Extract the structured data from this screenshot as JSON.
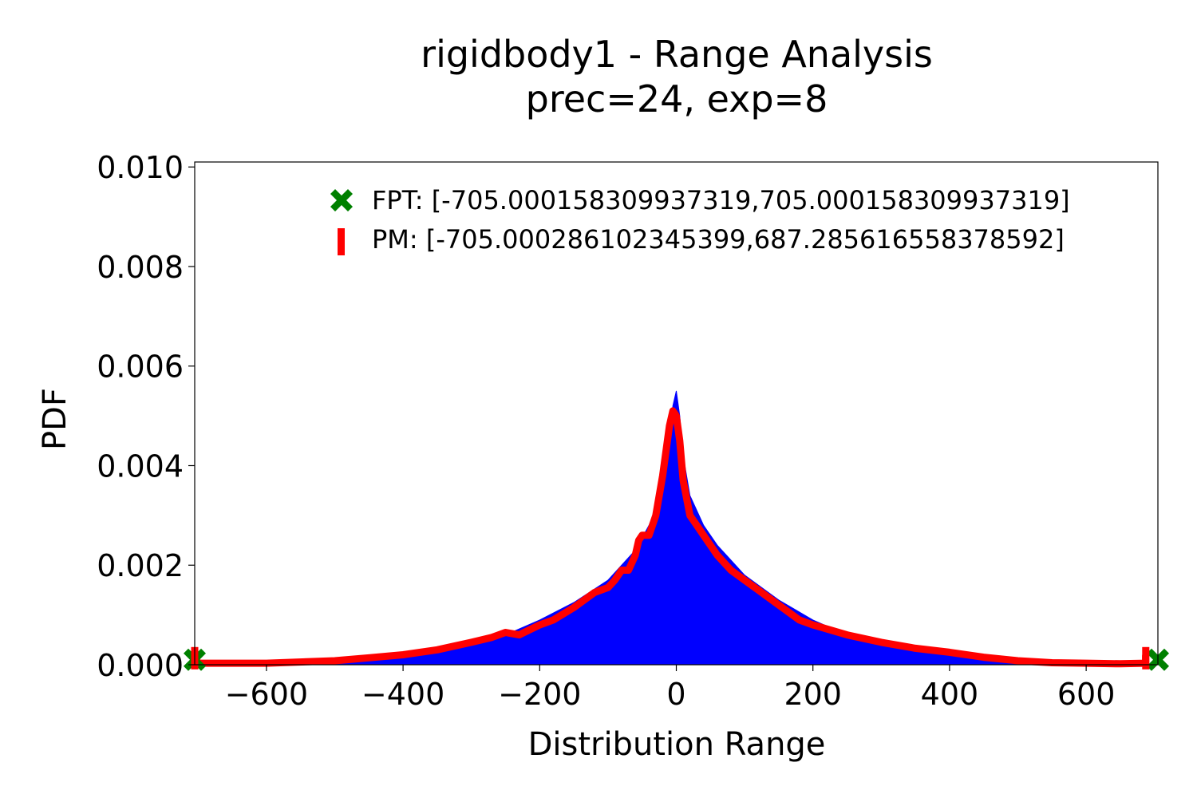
{
  "chart_data": {
    "type": "area",
    "title": "rigidbody1 - Range Analysis",
    "subtitle": "prec=24, exp=8",
    "xlabel": "Distribution Range",
    "ylabel": "PDF",
    "xlim": [
      -705,
      705
    ],
    "ylim": [
      0,
      0.0101
    ],
    "x_ticks": [
      -600,
      -400,
      -200,
      0,
      200,
      400,
      600
    ],
    "x_tick_labels": [
      "−600",
      "−400",
      "−200",
      "0",
      "200",
      "400",
      "600"
    ],
    "y_ticks": [
      0,
      0.002,
      0.004,
      0.006,
      0.008,
      0.01
    ],
    "y_tick_labels": [
      "0.000",
      "0.002",
      "0.004",
      "0.006",
      "0.008",
      "0.010"
    ],
    "grid": false,
    "legend_position": "top-right",
    "colors": {
      "histogram": "#0000ff",
      "pdf_curve": "#ff0000",
      "fpt_marker": "#008000",
      "pm_marker": "#ff0000"
    },
    "series": [
      {
        "kind": "histogram",
        "x": [
          -700,
          -600,
          -500,
          -450,
          -400,
          -350,
          -300,
          -250,
          -200,
          -150,
          -100,
          -80,
          -60,
          -40,
          -20,
          -10,
          -5,
          0,
          5,
          10,
          20,
          40,
          60,
          80,
          100,
          150,
          200,
          250,
          300,
          350,
          400,
          450,
          500,
          600,
          687
        ],
        "values": [
          2e-05,
          4e-05,
          8e-05,
          0.00013,
          0.0002,
          0.0003,
          0.00045,
          0.0006,
          0.0009,
          0.00125,
          0.0017,
          0.002,
          0.0023,
          0.0028,
          0.0035,
          0.0045,
          0.0052,
          0.0055,
          0.005,
          0.0042,
          0.0034,
          0.0028,
          0.0024,
          0.0021,
          0.0018,
          0.0013,
          0.0009,
          0.0006,
          0.0004,
          0.00028,
          0.00018,
          0.0001,
          5e-05,
          2e-05,
          1e-05
        ]
      },
      {
        "kind": "line",
        "x": [
          -705,
          -700,
          -600,
          -500,
          -450,
          -400,
          -350,
          -300,
          -270,
          -250,
          -230,
          -200,
          -180,
          -150,
          -120,
          -110,
          -100,
          -90,
          -80,
          -70,
          -60,
          -55,
          -50,
          -40,
          -30,
          -20,
          -10,
          -5,
          0,
          5,
          10,
          20,
          30,
          40,
          60,
          80,
          100,
          120,
          140,
          160,
          180,
          200,
          250,
          300,
          350,
          400,
          450,
          500,
          550,
          600,
          650,
          687,
          687
        ],
        "values": [
          0.00018,
          3e-05,
          3e-05,
          8e-05,
          0.00014,
          0.0002,
          0.0003,
          0.00045,
          0.00055,
          0.00065,
          0.0006,
          0.0008,
          0.0009,
          0.00115,
          0.00145,
          0.0015,
          0.00155,
          0.0017,
          0.0019,
          0.0019,
          0.0022,
          0.0025,
          0.0026,
          0.0026,
          0.003,
          0.0038,
          0.0048,
          0.0051,
          0.005,
          0.0045,
          0.0037,
          0.003,
          0.0028,
          0.0026,
          0.0022,
          0.0019,
          0.0017,
          0.0015,
          0.0013,
          0.0011,
          0.0009,
          0.0008,
          0.0006,
          0.00045,
          0.00033,
          0.00025,
          0.00015,
          8e-05,
          4e-05,
          3e-05,
          2e-05,
          3e-05,
          0.00018
        ]
      }
    ],
    "markers": {
      "fpt": {
        "x": [
          -705.0001583099373,
          705.0001583099373
        ],
        "y": [
          0.0001,
          0.0001
        ],
        "shape": "filled-x"
      },
      "pm": {
        "x": [
          -705.0002861023454,
          687.2856165583786
        ],
        "y": [
          0.0001,
          0.0001
        ],
        "shape": "vertical-bar"
      }
    },
    "legend": [
      {
        "key": "fpt",
        "label": "FPT: [-705.000158309937319,705.000158309937319]"
      },
      {
        "key": "pm",
        "label": "PM: [-705.000286102345399,687.285616558378592]"
      }
    ]
  }
}
